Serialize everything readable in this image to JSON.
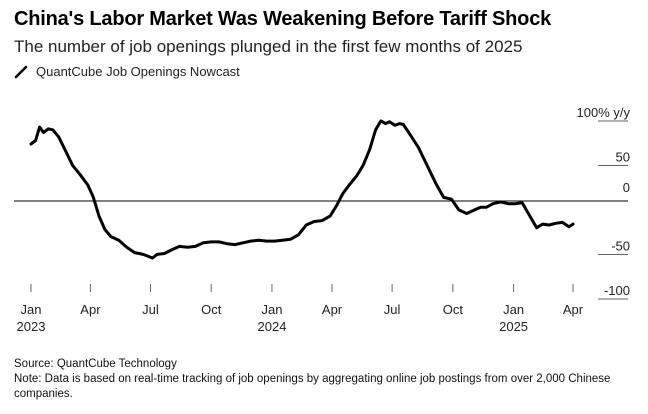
{
  "title": "China's Labor Market Was Weakening Before Tariff Shock",
  "subtitle": "The number of job openings plunged in the first few months of 2025",
  "legend": {
    "label": "QuantCube Job Openings Nowcast"
  },
  "footer": {
    "source": "Source: QuantCube Technology",
    "note": "Note: Data is based on real-time tracking of job openings by aggregating online job postings from over 2,000 Chinese companies."
  },
  "chart_data": {
    "type": "line",
    "xlabel": "",
    "ylabel": "",
    "ylim": [
      -100,
      100
    ],
    "y_unit_label": "100% y/y",
    "y_ticks": [
      {
        "value": 100,
        "label": "100% y/y"
      },
      {
        "value": 50,
        "label": "50"
      },
      {
        "value": 0,
        "label": "0"
      },
      {
        "value": -50,
        "label": "-50"
      },
      {
        "value": -100,
        "label": "-100"
      }
    ],
    "x_ticks": [
      {
        "x": "2023-01-01",
        "label": "Jan",
        "sub": "2023"
      },
      {
        "x": "2023-04-01",
        "label": "Apr",
        "sub": ""
      },
      {
        "x": "2023-07-01",
        "label": "Jul",
        "sub": ""
      },
      {
        "x": "2023-10-01",
        "label": "Oct",
        "sub": ""
      },
      {
        "x": "2024-01-01",
        "label": "Jan",
        "sub": "2024"
      },
      {
        "x": "2024-04-01",
        "label": "Apr",
        "sub": ""
      },
      {
        "x": "2024-07-01",
        "label": "Jul",
        "sub": ""
      },
      {
        "x": "2024-10-01",
        "label": "Oct",
        "sub": ""
      },
      {
        "x": "2025-01-01",
        "label": "Jan",
        "sub": "2025"
      },
      {
        "x": "2025-04-01",
        "label": "Apr",
        "sub": ""
      }
    ],
    "series": [
      {
        "color": "#000000",
        "points": [
          [
            "2023-01-01",
            64
          ],
          [
            "2023-01-08",
            68
          ],
          [
            "2023-01-14",
            83
          ],
          [
            "2023-01-20",
            77
          ],
          [
            "2023-01-27",
            81
          ],
          [
            "2023-02-03",
            80
          ],
          [
            "2023-02-12",
            72
          ],
          [
            "2023-02-22",
            57
          ],
          [
            "2023-03-05",
            40
          ],
          [
            "2023-03-16",
            30
          ],
          [
            "2023-03-28",
            18
          ],
          [
            "2023-04-05",
            5
          ],
          [
            "2023-04-14",
            -17
          ],
          [
            "2023-04-23",
            -32
          ],
          [
            "2023-05-02",
            -40
          ],
          [
            "2023-05-14",
            -44
          ],
          [
            "2023-05-26",
            -52
          ],
          [
            "2023-06-07",
            -58
          ],
          [
            "2023-06-20",
            -60
          ],
          [
            "2023-07-04",
            -64
          ],
          [
            "2023-07-11",
            -60
          ],
          [
            "2023-07-22",
            -59
          ],
          [
            "2023-08-02",
            -55
          ],
          [
            "2023-08-14",
            -51
          ],
          [
            "2023-08-26",
            -52
          ],
          [
            "2023-09-07",
            -51
          ],
          [
            "2023-09-19",
            -47
          ],
          [
            "2023-10-01",
            -46
          ],
          [
            "2023-10-13",
            -46
          ],
          [
            "2023-10-25",
            -48
          ],
          [
            "2023-11-06",
            -49
          ],
          [
            "2023-11-18",
            -47
          ],
          [
            "2023-11-30",
            -45
          ],
          [
            "2023-12-12",
            -44
          ],
          [
            "2023-12-24",
            -45
          ],
          [
            "2024-01-05",
            -45
          ],
          [
            "2024-01-17",
            -44
          ],
          [
            "2024-01-29",
            -43
          ],
          [
            "2024-02-10",
            -38
          ],
          [
            "2024-02-22",
            -27
          ],
          [
            "2024-03-05",
            -23
          ],
          [
            "2024-03-17",
            -22
          ],
          [
            "2024-03-29",
            -17
          ],
          [
            "2024-04-08",
            -5
          ],
          [
            "2024-04-17",
            8
          ],
          [
            "2024-04-27",
            18
          ],
          [
            "2024-05-08",
            28
          ],
          [
            "2024-05-18",
            40
          ],
          [
            "2024-05-28",
            58
          ],
          [
            "2024-06-06",
            80
          ],
          [
            "2024-06-14",
            90
          ],
          [
            "2024-06-21",
            87
          ],
          [
            "2024-06-27",
            89
          ],
          [
            "2024-07-05",
            85
          ],
          [
            "2024-07-12",
            87
          ],
          [
            "2024-07-18",
            86
          ],
          [
            "2024-07-28",
            75
          ],
          [
            "2024-08-10",
            60
          ],
          [
            "2024-08-23",
            40
          ],
          [
            "2024-09-05",
            20
          ],
          [
            "2024-09-17",
            4
          ],
          [
            "2024-09-29",
            2
          ],
          [
            "2024-10-10",
            -10
          ],
          [
            "2024-10-22",
            -14
          ],
          [
            "2024-11-03",
            -10
          ],
          [
            "2024-11-12",
            -7
          ],
          [
            "2024-11-21",
            -7
          ],
          [
            "2024-12-01",
            -3
          ],
          [
            "2024-12-12",
            -1
          ],
          [
            "2024-12-24",
            -3
          ],
          [
            "2025-01-03",
            -3
          ],
          [
            "2025-01-14",
            -2
          ],
          [
            "2025-01-25",
            -16
          ],
          [
            "2025-02-05",
            -30
          ],
          [
            "2025-02-14",
            -26
          ],
          [
            "2025-02-24",
            -27
          ],
          [
            "2025-03-06",
            -25
          ],
          [
            "2025-03-16",
            -24
          ],
          [
            "2025-03-26",
            -29
          ],
          [
            "2025-04-01",
            -26
          ]
        ]
      }
    ]
  }
}
